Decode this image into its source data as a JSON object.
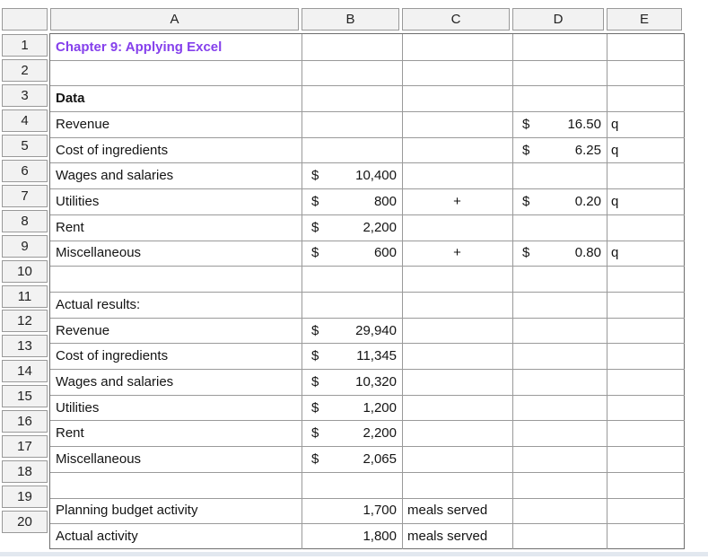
{
  "sheet": {
    "column_headers": [
      "A",
      "B",
      "C",
      "D",
      "E"
    ],
    "rows": [
      {
        "num": "1",
        "cells": [
          {
            "col": "A",
            "text": "Chapter 9: Applying Excel",
            "style": "title"
          }
        ]
      },
      {
        "num": "2",
        "cells": []
      },
      {
        "num": "3",
        "cells": [
          {
            "col": "A",
            "text": "Data",
            "style": "bold-label"
          }
        ]
      },
      {
        "num": "4",
        "cells": [
          {
            "col": "A",
            "text": "Revenue",
            "style": "label"
          },
          {
            "col": "D",
            "prefix": "$",
            "text": "16.50",
            "style": "money"
          },
          {
            "col": "E",
            "text": "q",
            "style": "unit"
          }
        ]
      },
      {
        "num": "5",
        "cells": [
          {
            "col": "A",
            "text": "Cost of ingredients",
            "style": "label"
          },
          {
            "col": "D",
            "prefix": "$",
            "text": "6.25",
            "style": "money"
          },
          {
            "col": "E",
            "text": "q",
            "style": "unit"
          }
        ]
      },
      {
        "num": "6",
        "cells": [
          {
            "col": "A",
            "text": "Wages and salaries",
            "style": "label"
          },
          {
            "col": "B",
            "prefix": "$",
            "text": "10,400",
            "style": "money"
          }
        ]
      },
      {
        "num": "7",
        "cells": [
          {
            "col": "A",
            "text": "Utilities",
            "style": "label"
          },
          {
            "col": "B",
            "prefix": "$",
            "text": "800",
            "style": "money"
          },
          {
            "col": "C",
            "text": "+",
            "style": "center"
          },
          {
            "col": "D",
            "prefix": "$",
            "text": "0.20",
            "style": "money"
          },
          {
            "col": "E",
            "text": "q",
            "style": "unit"
          }
        ]
      },
      {
        "num": "8",
        "cells": [
          {
            "col": "A",
            "text": "Rent",
            "style": "label"
          },
          {
            "col": "B",
            "prefix": "$",
            "text": "2,200",
            "style": "money"
          }
        ]
      },
      {
        "num": "9",
        "cells": [
          {
            "col": "A",
            "text": "Miscellaneous",
            "style": "label"
          },
          {
            "col": "B",
            "prefix": "$",
            "text": "600",
            "style": "money"
          },
          {
            "col": "C",
            "text": "+",
            "style": "center"
          },
          {
            "col": "D",
            "prefix": "$",
            "text": "0.80",
            "style": "money"
          },
          {
            "col": "E",
            "text": "q",
            "style": "unit"
          }
        ]
      },
      {
        "num": "10",
        "cells": []
      },
      {
        "num": "11",
        "cells": [
          {
            "col": "A",
            "text": "Actual results:",
            "style": "label"
          }
        ]
      },
      {
        "num": "12",
        "cells": [
          {
            "col": "A",
            "text": "Revenue",
            "style": "label"
          },
          {
            "col": "B",
            "prefix": "$",
            "text": "29,940",
            "style": "money"
          }
        ]
      },
      {
        "num": "13",
        "cells": [
          {
            "col": "A",
            "text": "Cost of ingredients",
            "style": "label"
          },
          {
            "col": "B",
            "prefix": "$",
            "text": "11,345",
            "style": "money"
          }
        ]
      },
      {
        "num": "14",
        "cells": [
          {
            "col": "A",
            "text": "Wages and salaries",
            "style": "label"
          },
          {
            "col": "B",
            "prefix": "$",
            "text": "10,320",
            "style": "money"
          }
        ]
      },
      {
        "num": "15",
        "cells": [
          {
            "col": "A",
            "text": "Utilities",
            "style": "label"
          },
          {
            "col": "B",
            "prefix": "$",
            "text": "1,200",
            "style": "money"
          }
        ]
      },
      {
        "num": "16",
        "cells": [
          {
            "col": "A",
            "text": "Rent",
            "style": "label"
          },
          {
            "col": "B",
            "prefix": "$",
            "text": "2,200",
            "style": "money"
          }
        ]
      },
      {
        "num": "17",
        "cells": [
          {
            "col": "A",
            "text": "Miscellaneous",
            "style": "label"
          },
          {
            "col": "B",
            "prefix": "$",
            "text": "2,065",
            "style": "money"
          }
        ]
      },
      {
        "num": "18",
        "cells": []
      },
      {
        "num": "19",
        "cells": [
          {
            "col": "A",
            "text": "Planning budget activity",
            "style": "label"
          },
          {
            "col": "B",
            "text": "1,700",
            "style": "num"
          },
          {
            "col": "C",
            "text": "meals served",
            "style": "label"
          }
        ]
      },
      {
        "num": "20",
        "cells": [
          {
            "col": "A",
            "text": "Actual activity",
            "style": "label"
          },
          {
            "col": "B",
            "text": "1,800",
            "style": "num"
          },
          {
            "col": "C",
            "text": "meals served",
            "style": "label"
          }
        ]
      }
    ],
    "colors": {
      "title_text": "#8540ec",
      "header_bg": "#f2f2f2",
      "grid_line": "#9a9a9a",
      "outer_border": "#6e6e6e",
      "bottom_bar": "#e2e8ef"
    }
  }
}
